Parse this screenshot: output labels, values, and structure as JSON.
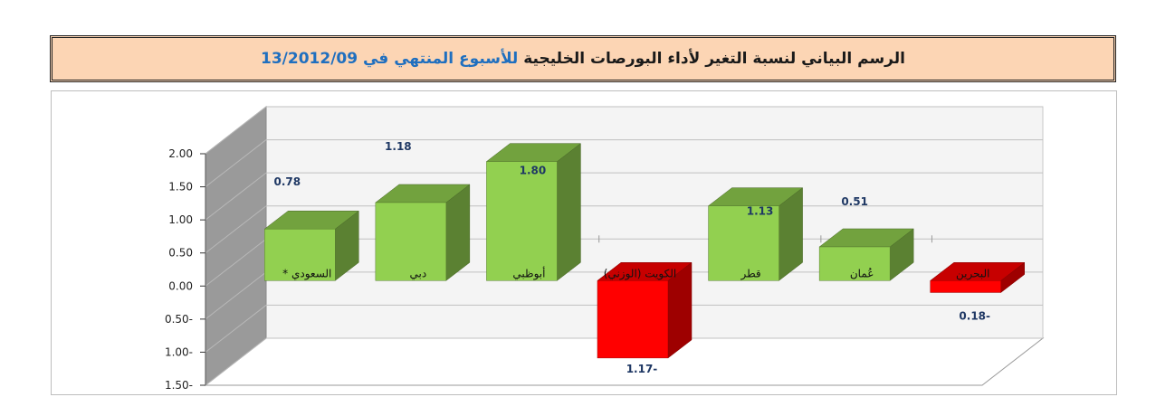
{
  "title": {
    "black_part": "الرسم البياني لنسبة التغير لأداء البورصات الخليجية",
    "blue_part": "للأسبوع المنتهي في 13/2012/09"
  },
  "colors": {
    "positive": "#92d050",
    "negative": "#ff0000",
    "title_bg": "#fcd5b4",
    "title_accent": "#1f6fbf",
    "data_label": "#1f3864"
  },
  "chart_data": {
    "type": "bar",
    "three_d": true,
    "categories": [
      "السعودي *",
      "دبي",
      "أبوظبي",
      "الكويت (الوزني)",
      "قطر",
      "عُمان",
      "البحرين"
    ],
    "values": [
      0.78,
      1.18,
      1.8,
      -1.17,
      1.13,
      0.51,
      -0.18
    ],
    "data_labels": [
      "0.78",
      "1.18",
      "1.80",
      "1.17-",
      "1.13",
      "0.51",
      "0.18-"
    ],
    "y_ticks": [
      "2.00",
      "1.50",
      "1.00",
      "0.50",
      "0.00",
      "0.50-",
      "1.00-",
      "1.50-"
    ],
    "ylim": [
      -1.5,
      2.0
    ],
    "grid": true,
    "title": "",
    "xlabel": "",
    "ylabel": ""
  }
}
